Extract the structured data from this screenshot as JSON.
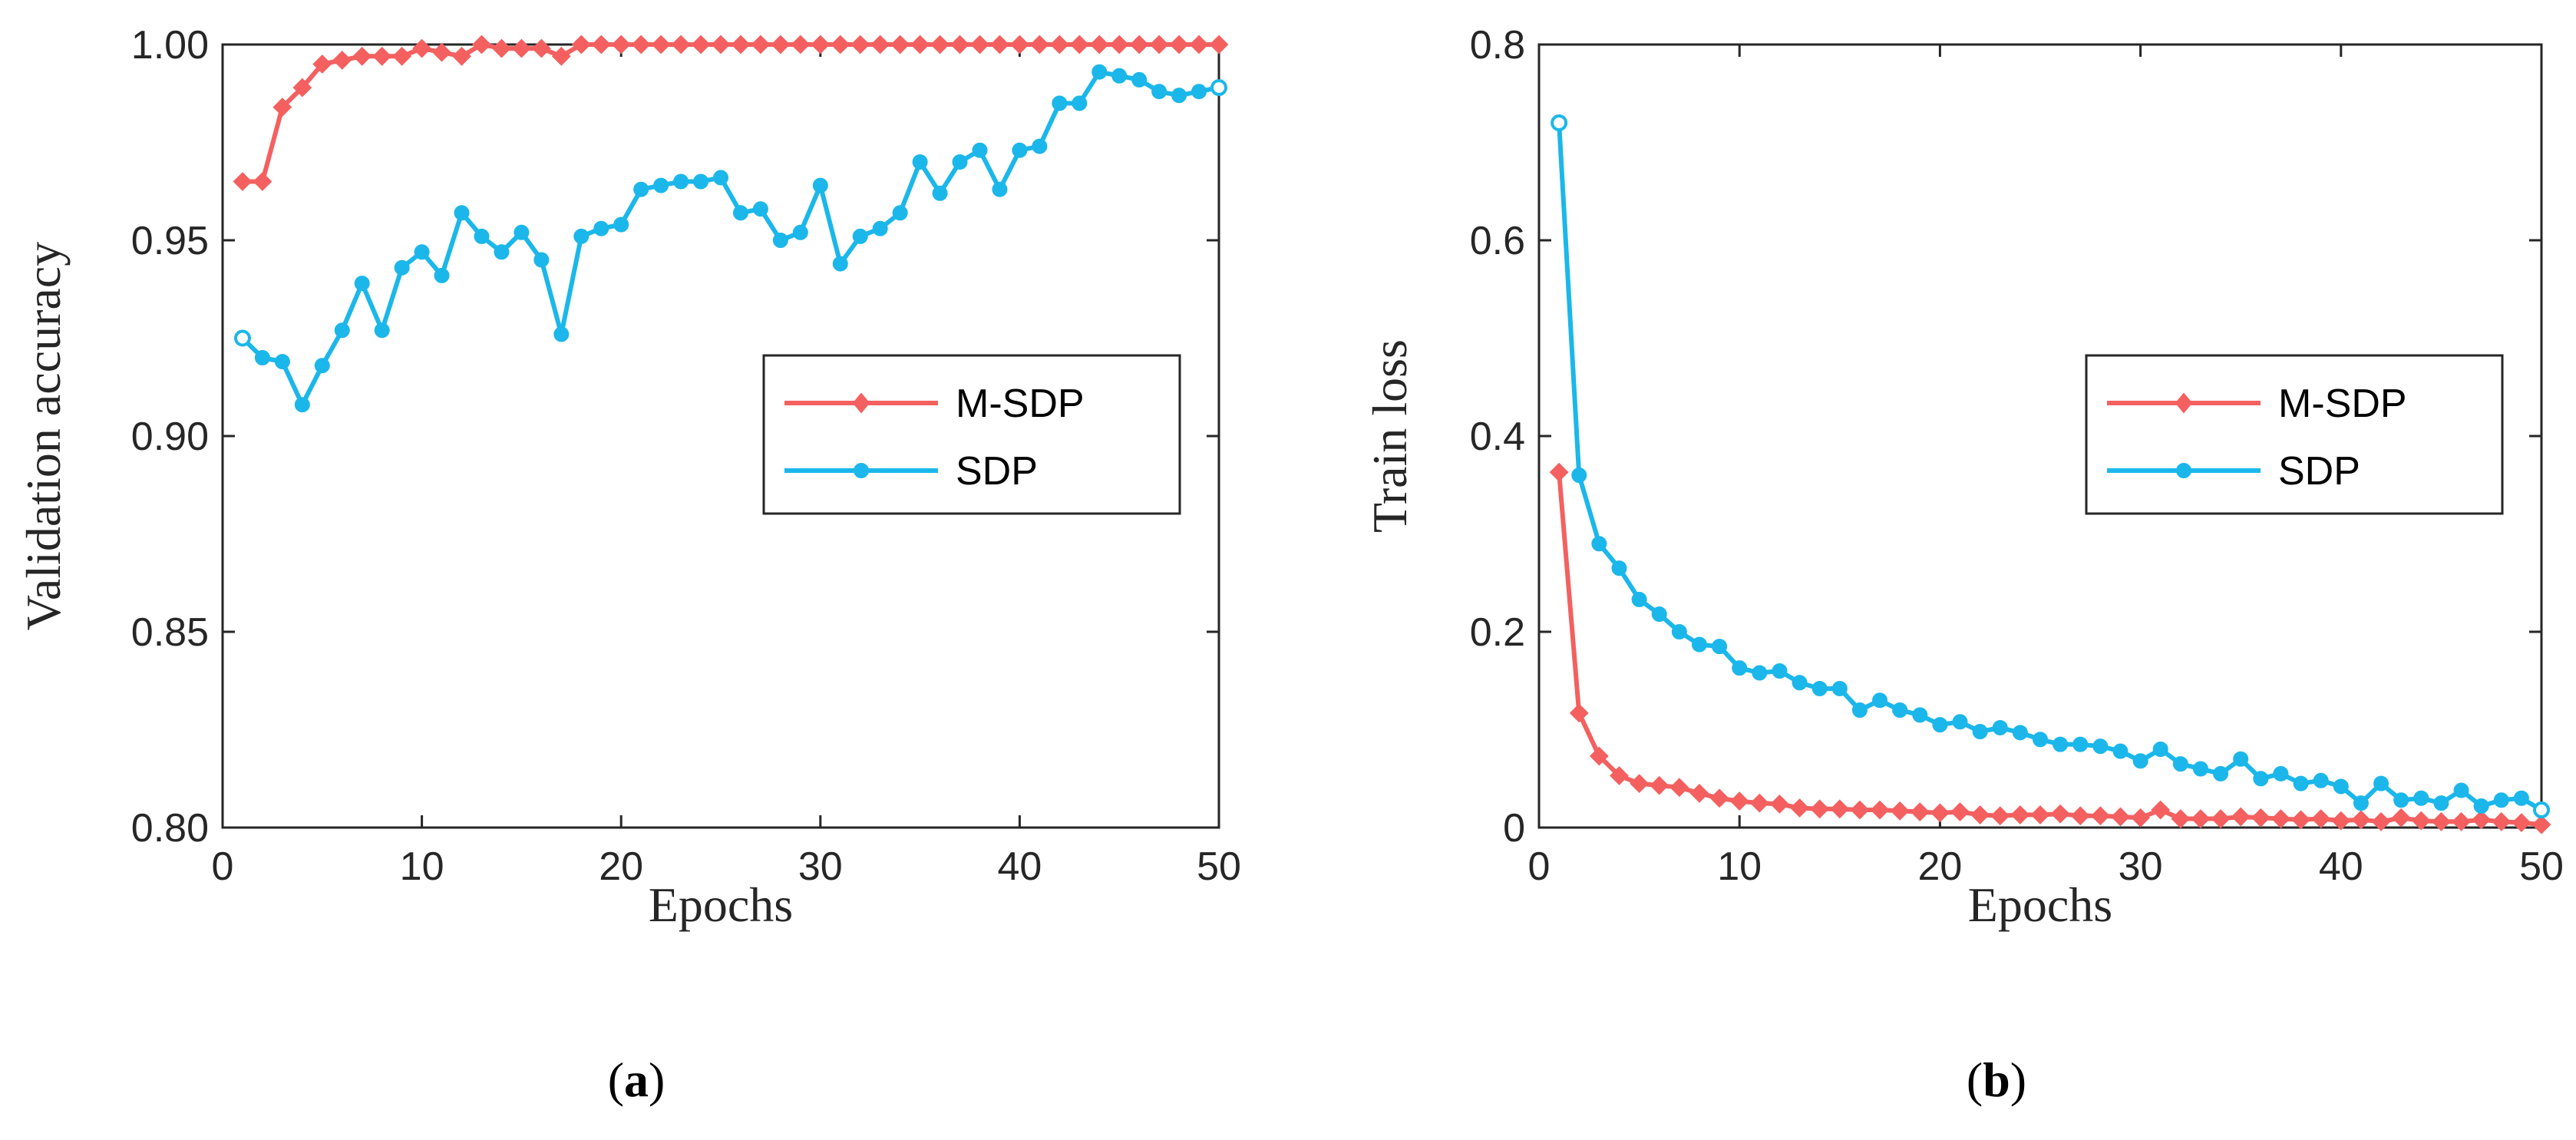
{
  "chart_data": [
    {
      "type": "line",
      "panel": "a",
      "title": "",
      "xlabel": "Epochs",
      "ylabel": "Validation accuracy",
      "xlim": [
        0,
        50
      ],
      "ylim": [
        0.8,
        1.0
      ],
      "xticks": [
        0,
        10,
        20,
        30,
        40,
        50
      ],
      "xtick_labels": [
        "0",
        "10",
        "20",
        "30",
        "40",
        "50"
      ],
      "yticks": [
        0.8,
        0.85,
        0.9,
        0.95,
        1.0
      ],
      "ytick_labels": [
        "0.80",
        "0.85",
        "0.90",
        "0.95",
        "1.00"
      ],
      "legend": "right",
      "series": [
        {
          "name": "M-SDP",
          "color": "#F46060",
          "marker": "diamond",
          "x": [
            1,
            2,
            3,
            4,
            5,
            6,
            7,
            8,
            9,
            10,
            11,
            12,
            13,
            14,
            15,
            16,
            17,
            18,
            19,
            20,
            21,
            22,
            23,
            24,
            25,
            26,
            27,
            28,
            29,
            30,
            31,
            32,
            33,
            34,
            35,
            36,
            37,
            38,
            39,
            40,
            41,
            42,
            43,
            44,
            45,
            46,
            47,
            48,
            49,
            50
          ],
          "values": [
            0.965,
            0.965,
            0.984,
            0.989,
            0.995,
            0.996,
            0.997,
            0.997,
            0.997,
            0.999,
            0.998,
            0.997,
            1.0,
            0.999,
            0.999,
            0.999,
            0.997,
            1.0,
            1.0,
            1.0,
            1.0,
            1.0,
            1.0,
            1.0,
            1.0,
            1.0,
            1.0,
            1.0,
            1.0,
            1.0,
            1.0,
            1.0,
            1.0,
            1.0,
            1.0,
            1.0,
            1.0,
            1.0,
            1.0,
            1.0,
            1.0,
            1.0,
            1.0,
            1.0,
            1.0,
            1.0,
            1.0,
            1.0,
            1.0,
            1.0
          ]
        },
        {
          "name": "SDP",
          "color": "#1BB7EA",
          "marker": "circle",
          "x": [
            1,
            2,
            3,
            4,
            5,
            6,
            7,
            8,
            9,
            10,
            11,
            12,
            13,
            14,
            15,
            16,
            17,
            18,
            19,
            20,
            21,
            22,
            23,
            24,
            25,
            26,
            27,
            28,
            29,
            30,
            31,
            32,
            33,
            34,
            35,
            36,
            37,
            38,
            39,
            40,
            41,
            42,
            43,
            44,
            45,
            46,
            47,
            48,
            49,
            50
          ],
          "values": [
            0.925,
            0.92,
            0.919,
            0.908,
            0.918,
            0.927,
            0.939,
            0.927,
            0.943,
            0.947,
            0.941,
            0.957,
            0.951,
            0.947,
            0.952,
            0.945,
            0.926,
            0.951,
            0.953,
            0.954,
            0.963,
            0.964,
            0.965,
            0.965,
            0.966,
            0.957,
            0.958,
            0.95,
            0.952,
            0.964,
            0.944,
            0.951,
            0.953,
            0.957,
            0.97,
            0.962,
            0.97,
            0.973,
            0.963,
            0.973,
            0.974,
            0.985,
            0.985,
            0.993,
            0.992,
            0.991,
            0.988,
            0.987,
            0.988,
            0.989
          ]
        }
      ]
    },
    {
      "type": "line",
      "panel": "b",
      "title": "",
      "xlabel": "Epochs",
      "ylabel": "Train loss",
      "xlim": [
        0,
        50
      ],
      "ylim": [
        0,
        0.8
      ],
      "xticks": [
        0,
        10,
        20,
        30,
        40,
        50
      ],
      "xtick_labels": [
        "0",
        "10",
        "20",
        "30",
        "40",
        "50"
      ],
      "yticks": [
        0,
        0.2,
        0.4,
        0.6,
        0.8
      ],
      "ytick_labels": [
        "0",
        "0.2",
        "0.4",
        "0.6",
        "0.8"
      ],
      "legend": "right",
      "series": [
        {
          "name": "M-SDP",
          "color": "#F46060",
          "marker": "diamond",
          "x": [
            1,
            2,
            3,
            4,
            5,
            6,
            7,
            8,
            9,
            10,
            11,
            12,
            13,
            14,
            15,
            16,
            17,
            18,
            19,
            20,
            21,
            22,
            23,
            24,
            25,
            26,
            27,
            28,
            29,
            30,
            31,
            32,
            33,
            34,
            35,
            36,
            37,
            38,
            39,
            40,
            41,
            42,
            43,
            44,
            45,
            46,
            47,
            48,
            49,
            50
          ],
          "values": [
            0.363,
            0.117,
            0.073,
            0.053,
            0.045,
            0.043,
            0.041,
            0.035,
            0.03,
            0.027,
            0.025,
            0.024,
            0.02,
            0.019,
            0.019,
            0.018,
            0.018,
            0.017,
            0.016,
            0.015,
            0.016,
            0.013,
            0.012,
            0.013,
            0.013,
            0.014,
            0.012,
            0.012,
            0.011,
            0.01,
            0.018,
            0.009,
            0.009,
            0.009,
            0.011,
            0.01,
            0.009,
            0.008,
            0.009,
            0.007,
            0.008,
            0.006,
            0.01,
            0.007,
            0.006,
            0.006,
            0.008,
            0.006,
            0.005,
            0.003
          ]
        },
        {
          "name": "SDP",
          "color": "#1BB7EA",
          "marker": "circle",
          "x": [
            1,
            2,
            3,
            4,
            5,
            6,
            7,
            8,
            9,
            10,
            11,
            12,
            13,
            14,
            15,
            16,
            17,
            18,
            19,
            20,
            21,
            22,
            23,
            24,
            25,
            26,
            27,
            28,
            29,
            30,
            31,
            32,
            33,
            34,
            35,
            36,
            37,
            38,
            39,
            40,
            41,
            42,
            43,
            44,
            45,
            46,
            47,
            48,
            49,
            50
          ],
          "values": [
            0.72,
            0.36,
            0.29,
            0.265,
            0.233,
            0.218,
            0.2,
            0.187,
            0.185,
            0.163,
            0.158,
            0.16,
            0.148,
            0.142,
            0.142,
            0.12,
            0.13,
            0.12,
            0.115,
            0.105,
            0.108,
            0.098,
            0.102,
            0.097,
            0.09,
            0.085,
            0.085,
            0.083,
            0.078,
            0.068,
            0.08,
            0.065,
            0.06,
            0.055,
            0.07,
            0.05,
            0.055,
            0.045,
            0.048,
            0.042,
            0.025,
            0.045,
            0.028,
            0.03,
            0.025,
            0.038,
            0.022,
            0.028,
            0.03,
            0.018
          ]
        }
      ]
    }
  ],
  "panel_labels": {
    "a": {
      "open": "(",
      "letter": "a",
      "close": ")"
    },
    "b": {
      "open": "(",
      "letter": "b",
      "close": ")"
    }
  }
}
